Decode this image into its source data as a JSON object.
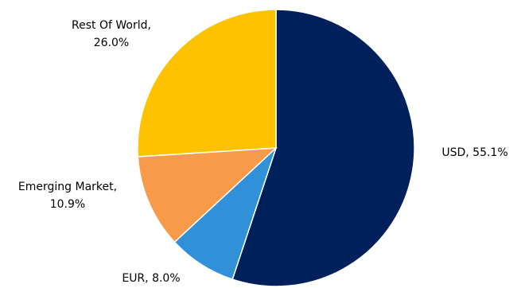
{
  "chart_data": {
    "type": "pie",
    "title": "",
    "legend": "none",
    "start_angle_deg": 0,
    "direction": "clockwise",
    "slices": [
      {
        "label": "USD",
        "value": 55.1,
        "value_text": "55.1%",
        "color": "#00205b"
      },
      {
        "label": "EUR",
        "value": 8.0,
        "value_text": "8.0%",
        "color": "#3091d9"
      },
      {
        "label": "Emerging Market",
        "value": 10.9,
        "value_text": "10.9%",
        "color": "#f79a4a"
      },
      {
        "label": "Rest Of World",
        "value": 26.0,
        "value_text": "26.0%",
        "color": "#fec200"
      }
    ]
  }
}
